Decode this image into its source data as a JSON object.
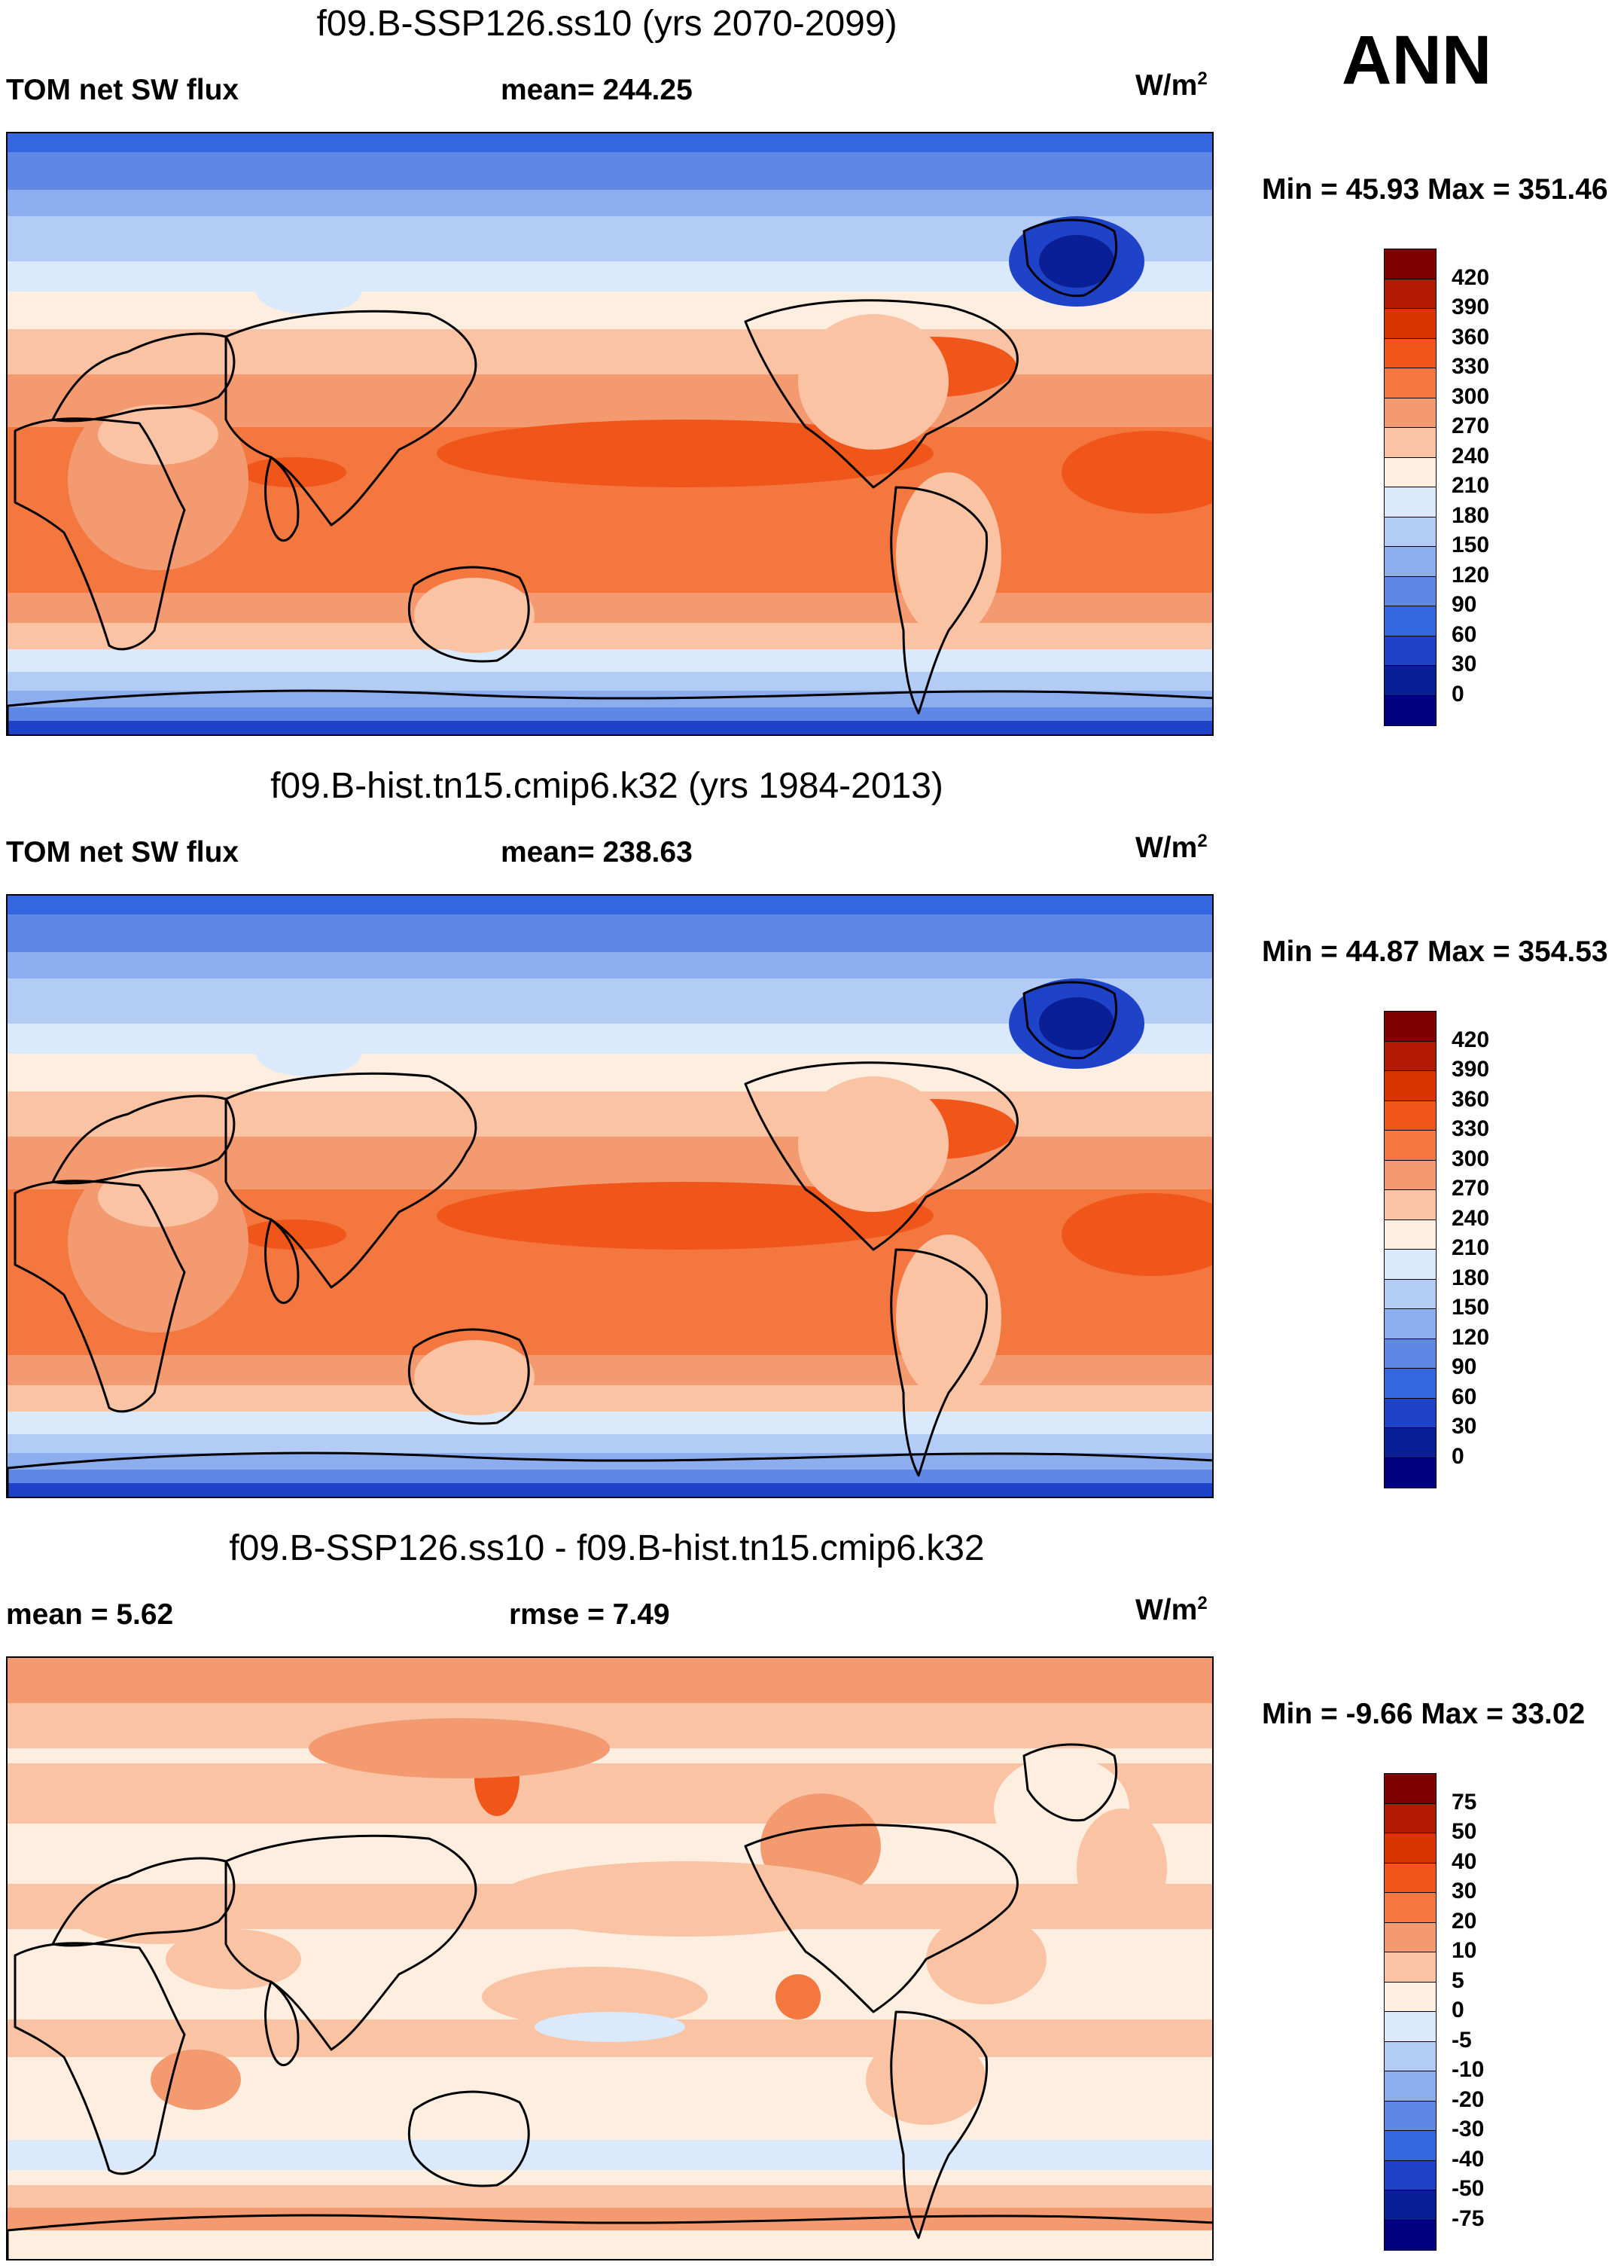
{
  "season": "ANN",
  "panels": [
    {
      "title": "f09.B-SSP126.ss10 (yrs 2070-2099)",
      "left_label": "TOM net SW flux",
      "center_label": "mean= 244.25",
      "units": "W/m",
      "units_exp": "2",
      "minmax": "Min =  45.93 Max = 351.46",
      "variant": "ssp",
      "colorbar": {
        "labels": [
          "420",
          "390",
          "360",
          "330",
          "300",
          "270",
          "240",
          "210",
          "180",
          "150",
          "120",
          "90",
          "60",
          "30",
          "0"
        ],
        "colors": [
          "#800000",
          "#b21a00",
          "#d93300",
          "#f0561a",
          "#f3773f",
          "#f49a70",
          "#f9c3a4",
          "#fdeee0",
          "#dae9fb",
          "#b3ccf5",
          "#8cadee",
          "#5f88e6",
          "#3366df",
          "#1e43c8",
          "#0a1f96",
          "#000080"
        ]
      }
    },
    {
      "title": "f09.B-hist.tn15.cmip6.k32 (yrs 1984-2013)",
      "left_label": "TOM net SW flux",
      "center_label": "mean= 238.63",
      "units": "W/m",
      "units_exp": "2",
      "minmax": "Min =  44.87 Max = 354.53",
      "variant": "hist",
      "colorbar": {
        "labels": [
          "420",
          "390",
          "360",
          "330",
          "300",
          "270",
          "240",
          "210",
          "180",
          "150",
          "120",
          "90",
          "60",
          "30",
          "0"
        ],
        "colors": [
          "#800000",
          "#b21a00",
          "#d93300",
          "#f0561a",
          "#f3773f",
          "#f49a70",
          "#f9c3a4",
          "#fdeee0",
          "#dae9fb",
          "#b3ccf5",
          "#8cadee",
          "#5f88e6",
          "#3366df",
          "#1e43c8",
          "#0a1f96",
          "#000080"
        ]
      }
    },
    {
      "title": "f09.B-SSP126.ss10 - f09.B-hist.tn15.cmip6.k32",
      "left_label": "mean =    5.62",
      "center_label": "rmse =    7.49",
      "units": "W/m",
      "units_exp": "2",
      "minmax": "Min =  -9.66 Max =  33.02",
      "variant": "diff",
      "colorbar": {
        "labels": [
          "75",
          "50",
          "40",
          "30",
          "20",
          "10",
          "5",
          "0",
          "-5",
          "-10",
          "-20",
          "-30",
          "-40",
          "-50",
          "-75"
        ],
        "colors": [
          "#800000",
          "#b21a00",
          "#d93300",
          "#f0561a",
          "#f3773f",
          "#f49a70",
          "#f9c3a4",
          "#fdeee0",
          "#dae9fb",
          "#b3ccf5",
          "#8cadee",
          "#5f88e6",
          "#3366df",
          "#1e43c8",
          "#0a1f96",
          "#000080"
        ]
      }
    }
  ]
}
